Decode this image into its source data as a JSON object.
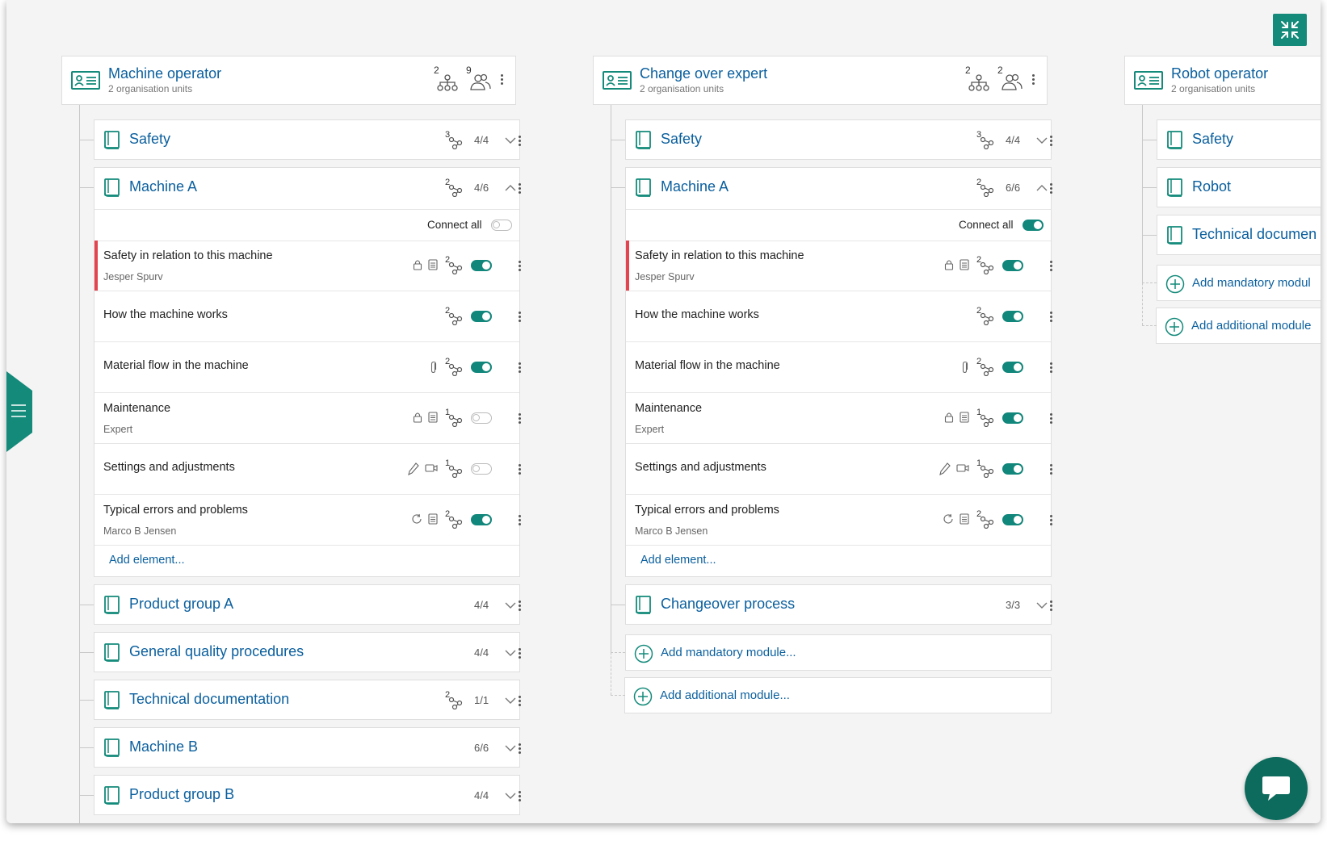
{
  "columns": [
    {
      "role": {
        "title": "Machine operator",
        "subtitle": "2 organisation units",
        "orgunits": "2",
        "people": "9"
      },
      "modules": [
        {
          "title": "Safety",
          "share": "3",
          "fraction": "4/4",
          "expanded": false
        },
        {
          "title": "Machine A",
          "share": "2",
          "fraction": "4/6",
          "expanded": true,
          "connect_all_label": "Connect all",
          "connect_all": false,
          "elements": [
            {
              "title": "Safety in relation to this machine",
              "subtitle": "Jesper Spurv",
              "share": "2",
              "icons": [
                "lock-icon",
                "document-icon"
              ],
              "enabled": true,
              "flagged": true
            },
            {
              "title": "How the machine works",
              "subtitle": "",
              "share": "2",
              "icons": [],
              "enabled": true,
              "flagged": false
            },
            {
              "title": "Material flow in the machine",
              "subtitle": "",
              "share": "2",
              "icons": [
                "paperclip-icon"
              ],
              "enabled": true,
              "flagged": false
            },
            {
              "title": "Maintenance",
              "subtitle": "Expert",
              "share": "1",
              "icons": [
                "lock-icon",
                "document-icon"
              ],
              "enabled": false,
              "flagged": false
            },
            {
              "title": "Settings and adjustments",
              "subtitle": "",
              "share": "1",
              "icons": [
                "pen-icon",
                "video-icon"
              ],
              "enabled": false,
              "flagged": false
            },
            {
              "title": "Typical errors and problems",
              "subtitle": "Marco B Jensen",
              "share": "2",
              "icons": [
                "refresh-icon",
                "document-icon"
              ],
              "enabled": true,
              "flagged": false
            }
          ],
          "add_element": "Add element..."
        },
        {
          "title": "Product group A",
          "share": "",
          "fraction": "4/4",
          "expanded": false
        },
        {
          "title": "General quality procedures",
          "share": "",
          "fraction": "4/4",
          "expanded": false
        },
        {
          "title": "Technical documentation",
          "share": "2",
          "fraction": "1/1",
          "expanded": false
        },
        {
          "title": "Machine B",
          "share": "",
          "fraction": "6/6",
          "expanded": false
        },
        {
          "title": "Product group B",
          "share": "",
          "fraction": "4/4",
          "expanded": false
        }
      ]
    },
    {
      "role": {
        "title": "Change over expert",
        "subtitle": "2 organisation units",
        "orgunits": "2",
        "people": "2"
      },
      "modules": [
        {
          "title": "Safety",
          "share": "3",
          "fraction": "4/4",
          "expanded": false
        },
        {
          "title": "Machine A",
          "share": "2",
          "fraction": "6/6",
          "expanded": true,
          "connect_all_label": "Connect all",
          "connect_all": true,
          "elements": [
            {
              "title": "Safety in relation to this machine",
              "subtitle": "Jesper Spurv",
              "share": "2",
              "icons": [
                "lock-icon",
                "document-icon"
              ],
              "enabled": true,
              "flagged": true
            },
            {
              "title": "How the machine works",
              "subtitle": "",
              "share": "2",
              "icons": [],
              "enabled": true,
              "flagged": false
            },
            {
              "title": "Material flow in the machine",
              "subtitle": "",
              "share": "2",
              "icons": [
                "paperclip-icon"
              ],
              "enabled": true,
              "flagged": false
            },
            {
              "title": "Maintenance",
              "subtitle": "Expert",
              "share": "1",
              "icons": [
                "lock-icon",
                "document-icon"
              ],
              "enabled": true,
              "flagged": false
            },
            {
              "title": "Settings and adjustments",
              "subtitle": "",
              "share": "1",
              "icons": [
                "pen-icon",
                "video-icon"
              ],
              "enabled": true,
              "flagged": false
            },
            {
              "title": "Typical errors and problems",
              "subtitle": "Marco B Jensen",
              "share": "2",
              "icons": [
                "refresh-icon",
                "document-icon"
              ],
              "enabled": true,
              "flagged": false
            }
          ],
          "add_element": "Add element..."
        },
        {
          "title": "Changeover process",
          "share": "",
          "fraction": "3/3",
          "expanded": false
        }
      ],
      "add_mandatory": "Add mandatory module...",
      "add_additional": "Add additional module..."
    },
    {
      "role": {
        "title": "Robot operator",
        "subtitle": "2 organisation units"
      },
      "modules": [
        {
          "title": "Safety"
        },
        {
          "title": "Robot"
        },
        {
          "title": "Technical documen"
        }
      ],
      "add_mandatory": "Add mandatory modul",
      "add_additional": "Add additional module"
    }
  ],
  "colors": {
    "accent": "#138a7a",
    "link": "#0a5f9e",
    "flag": "#e2454f",
    "chat": "#0c6b5c"
  },
  "icons": {
    "collapse": "collapse-arrows-icon",
    "menu": "hamburger-menu-icon",
    "chat": "chat-bubble-icon"
  }
}
